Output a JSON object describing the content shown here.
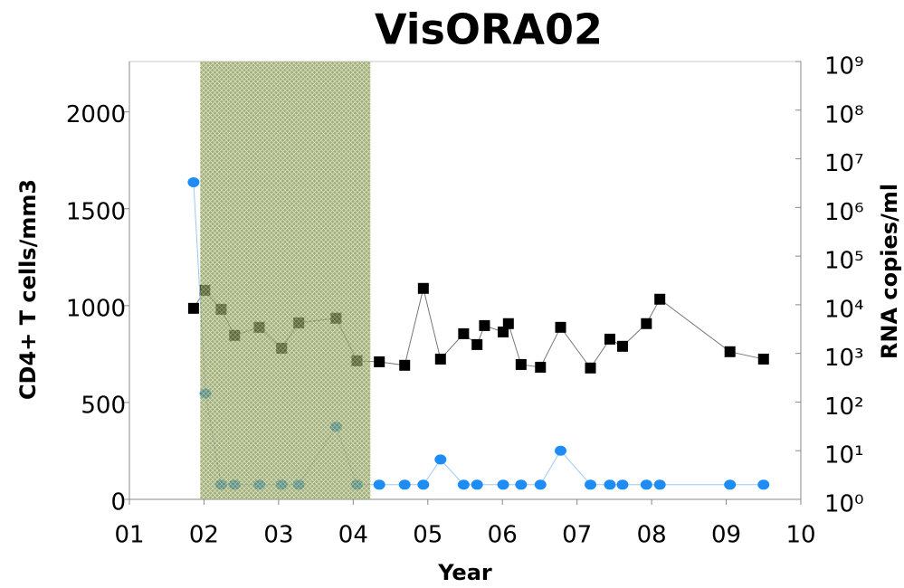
{
  "chart_data": {
    "type": "line",
    "title": "VisORA02",
    "x_label": "Year",
    "y_label": "CD4+ T cells/mm3",
    "y2_label": "RNA copies/ml",
    "y2_label_color": "#3d8bf0",
    "xlim": [
      1,
      10
    ],
    "xticks": [
      {
        "value": 1,
        "label": "01"
      },
      {
        "value": 2,
        "label": "02"
      },
      {
        "value": 3,
        "label": "03"
      },
      {
        "value": 4,
        "label": "04"
      },
      {
        "value": 5,
        "label": "05"
      },
      {
        "value": 6,
        "label": "06"
      },
      {
        "value": 7,
        "label": "07"
      },
      {
        "value": 8,
        "label": "08"
      },
      {
        "value": 9,
        "label": "09"
      },
      {
        "value": 10,
        "label": "10"
      }
    ],
    "ylim": [
      0,
      2260
    ],
    "yticks": [
      0,
      500,
      1000,
      1500,
      2000
    ],
    "y2lim": [
      1,
      1000000000
    ],
    "y2_log": true,
    "y2ticks": [
      {
        "value": 1,
        "label": "10⁰"
      },
      {
        "value": 10,
        "label": "10¹"
      },
      {
        "value": 100,
        "label": "10²"
      },
      {
        "value": 1000,
        "label": "10³"
      },
      {
        "value": 10000,
        "label": "10⁴"
      },
      {
        "value": 100000,
        "label": "10⁵"
      },
      {
        "value": 1000000,
        "label": "10⁶"
      },
      {
        "value": 10000000,
        "label": "10⁷"
      },
      {
        "value": 100000000,
        "label": "10⁸"
      },
      {
        "value": 1000000000,
        "label": "10⁹"
      }
    ],
    "shaded_region": {
      "x": [
        1.95,
        4.23
      ],
      "color": "#7d8f45"
    },
    "series": [
      {
        "color": "#000000",
        "line_color": "#777777",
        "marker": "square",
        "x": [
          1.86,
          2.01,
          2.23,
          2.41,
          2.74,
          3.04,
          3.27,
          3.77,
          4.05,
          4.35,
          4.69,
          4.94,
          5.17,
          5.48,
          5.66,
          5.76,
          6.01,
          6.08,
          6.25,
          6.51,
          6.78,
          7.18,
          7.44,
          7.61,
          7.93,
          8.11,
          9.05,
          9.5
        ],
        "values": [
          986,
          1079,
          981,
          846,
          888,
          780,
          911,
          935,
          715,
          710,
          692,
          1089,
          724,
          855,
          799,
          897,
          864,
          907,
          696,
          682,
          888,
          678,
          827,
          790,
          907,
          1033,
          762,
          724
        ]
      },
      {
        "color": "#1e8cf5",
        "line_color": "#9cc8f5",
        "marker": "circle",
        "axis": "y2",
        "x": [
          1.86,
          2.02,
          2.23,
          2.41,
          2.74,
          3.04,
          3.27,
          3.77,
          4.05,
          4.35,
          4.69,
          4.94,
          5.17,
          5.48,
          5.66,
          6.01,
          6.25,
          6.51,
          6.78,
          7.18,
          7.44,
          7.61,
          7.93,
          8.11,
          9.05,
          9.5
        ],
        "values": [
          3300000,
          150,
          2,
          2,
          2,
          2,
          2,
          31,
          2,
          2,
          2,
          2,
          6.6,
          2,
          2,
          2,
          2,
          2,
          10,
          2,
          2,
          2,
          2,
          2,
          2,
          2
        ]
      }
    ]
  }
}
